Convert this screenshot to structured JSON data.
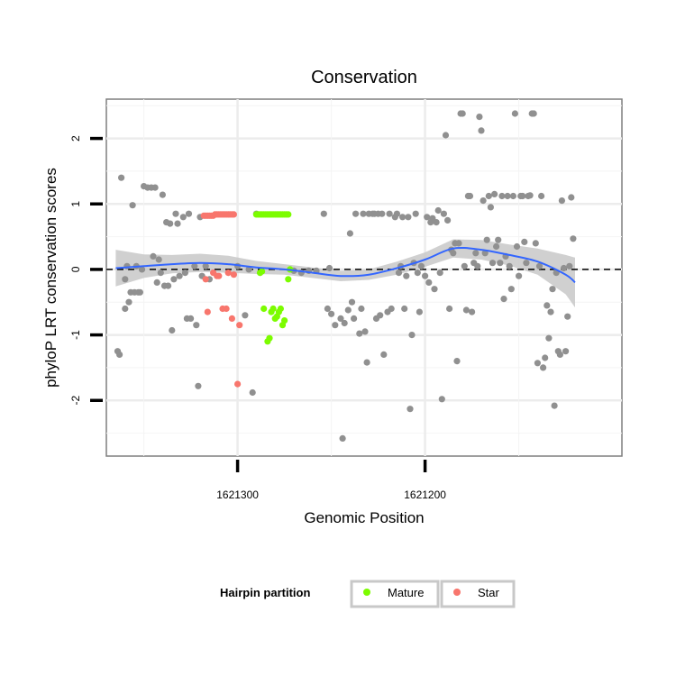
{
  "chart_data": {
    "type": "scatter",
    "title": "Conservation",
    "xlabel": "Genomic Position",
    "ylabel": "phyloP LRT conservation scores",
    "x_reversed": true,
    "xlim": [
      1621370,
      1621095
    ],
    "ylim": [
      -2.85,
      2.6
    ],
    "x_ticks": [
      1621300,
      1621200
    ],
    "x_tick_labels": [
      "1621300",
      "1621200"
    ],
    "y_ticks": [
      -2,
      -1,
      0,
      1,
      2
    ],
    "y_tick_labels": [
      "-2",
      "-1",
      "0",
      "1",
      "2"
    ],
    "grid": true,
    "reference_line": {
      "y": 0,
      "style": "dashed"
    },
    "legend": {
      "title": "Hairpin partition",
      "position": "bottom",
      "items": [
        {
          "label": "Mature",
          "color": "#7CFC00"
        },
        {
          "label": "Star",
          "color": "#F8766D"
        }
      ]
    },
    "colors": {
      "other": "#909090",
      "smooth": "#3366FF",
      "ribbon": "#c8c8c8"
    },
    "series": [
      {
        "group": "other",
        "points": [
          [
            1621364,
            -1.25
          ],
          [
            1621363,
            -1.3
          ],
          [
            1621362,
            1.4
          ],
          [
            1621360,
            -0.15
          ],
          [
            1621360,
            -0.6
          ],
          [
            1621359,
            0.05
          ],
          [
            1621358,
            -0.5
          ],
          [
            1621357,
            -0.35
          ],
          [
            1621356,
            0.98
          ],
          [
            1621355,
            -0.35
          ],
          [
            1621354,
            0.05
          ],
          [
            1621353,
            -0.35
          ],
          [
            1621352,
            -0.35
          ],
          [
            1621351,
            0
          ],
          [
            1621350,
            1.27
          ],
          [
            1621348,
            1.25
          ],
          [
            1621346,
            1.25
          ],
          [
            1621345,
            0.2
          ],
          [
            1621344,
            1.25
          ],
          [
            1621343,
            -0.2
          ],
          [
            1621342,
            0.15
          ],
          [
            1621341,
            -0.05
          ],
          [
            1621340,
            1.14
          ],
          [
            1621339,
            -0.25
          ],
          [
            1621338,
            0.72
          ],
          [
            1621337,
            -0.25
          ],
          [
            1621336,
            0.7
          ],
          [
            1621335,
            -0.93
          ],
          [
            1621334,
            -0.15
          ],
          [
            1621333,
            0.85
          ],
          [
            1621332,
            0.7
          ],
          [
            1621331,
            -0.1
          ],
          [
            1621329,
            0.8
          ],
          [
            1621328,
            -0.05
          ],
          [
            1621327,
            -0.75
          ],
          [
            1621326,
            0.85
          ],
          [
            1621325,
            -0.75
          ],
          [
            1621323,
            0.05
          ],
          [
            1621322,
            -0.85
          ],
          [
            1621321,
            -1.78
          ],
          [
            1621320,
            0.8
          ],
          [
            1621319,
            -0.1
          ],
          [
            1621317,
            0.05
          ],
          [
            1621315,
            -0.15
          ],
          [
            1621300,
            0.05
          ],
          [
            1621296,
            -0.7
          ],
          [
            1621294,
            0
          ],
          [
            1621292,
            -1.88
          ],
          [
            1621290,
            0.85
          ],
          [
            1621288,
            -0.05
          ],
          [
            1621270,
            -0.02
          ],
          [
            1621266,
            -0.05
          ],
          [
            1621262,
            -0.02
          ],
          [
            1621258,
            -0.02
          ],
          [
            1621254,
            0.85
          ],
          [
            1621252,
            -0.6
          ],
          [
            1621251,
            0.02
          ],
          [
            1621250,
            -0.68
          ],
          [
            1621248,
            -0.85
          ],
          [
            1621245,
            -0.75
          ],
          [
            1621244,
            -2.58
          ],
          [
            1621243,
            -0.82
          ],
          [
            1621241,
            -0.62
          ],
          [
            1621240,
            0.55
          ],
          [
            1621239,
            -0.5
          ],
          [
            1621238,
            -0.75
          ],
          [
            1621237,
            0.85
          ],
          [
            1621235,
            -0.98
          ],
          [
            1621234,
            -0.6
          ],
          [
            1621233,
            0.85
          ],
          [
            1621232,
            -0.95
          ],
          [
            1621231,
            -1.42
          ],
          [
            1621230,
            0.85
          ],
          [
            1621228,
            0.85
          ],
          [
            1621227,
            0.85
          ],
          [
            1621226,
            -0.75
          ],
          [
            1621225,
            0.85
          ],
          [
            1621224,
            -0.7
          ],
          [
            1621223,
            0.85
          ],
          [
            1621222,
            -1.3
          ],
          [
            1621220,
            -0.65
          ],
          [
            1621219,
            0.85
          ],
          [
            1621218,
            -0.6
          ],
          [
            1621216,
            0.8
          ],
          [
            1621215,
            0.85
          ],
          [
            1621214,
            -0.05
          ],
          [
            1621213,
            0.05
          ],
          [
            1621212,
            0.8
          ],
          [
            1621211,
            -0.6
          ],
          [
            1621210,
            -0.1
          ],
          [
            1621209,
            0.8
          ],
          [
            1621208,
            -2.13
          ],
          [
            1621207,
            -1
          ],
          [
            1621206,
            0.1
          ],
          [
            1621205,
            0.85
          ],
          [
            1621204,
            -0.05
          ],
          [
            1621203,
            -0.65
          ],
          [
            1621202,
            0.05
          ],
          [
            1621200,
            -0.1
          ],
          [
            1621199,
            0.8
          ],
          [
            1621198,
            -0.2
          ],
          [
            1621197,
            0.72
          ],
          [
            1621196,
            0.78
          ],
          [
            1621195,
            -0.3
          ],
          [
            1621194,
            0.72
          ],
          [
            1621193,
            0.9
          ],
          [
            1621192,
            -0.05
          ],
          [
            1621191,
            -1.98
          ],
          [
            1621190,
            0.85
          ],
          [
            1621189,
            2.05
          ],
          [
            1621188,
            0.75
          ],
          [
            1621187,
            -0.6
          ],
          [
            1621186,
            0.3
          ],
          [
            1621185,
            0.25
          ],
          [
            1621184,
            0.4
          ],
          [
            1621183,
            -1.4
          ],
          [
            1621182,
            0.4
          ],
          [
            1621181,
            2.38
          ],
          [
            1621180,
            2.38
          ],
          [
            1621179,
            0.05
          ],
          [
            1621178,
            -0.62
          ],
          [
            1621177,
            1.12
          ],
          [
            1621176,
            1.12
          ],
          [
            1621175,
            -0.65
          ],
          [
            1621174,
            0.1
          ],
          [
            1621173,
            0.25
          ],
          [
            1621172,
            0.05
          ],
          [
            1621171,
            2.33
          ],
          [
            1621170,
            2.12
          ],
          [
            1621169,
            1.05
          ],
          [
            1621168,
            0.25
          ],
          [
            1621167,
            0.45
          ],
          [
            1621166,
            1.12
          ],
          [
            1621165,
            0.95
          ],
          [
            1621164,
            0.1
          ],
          [
            1621163,
            1.15
          ],
          [
            1621162,
            0.35
          ],
          [
            1621161,
            0.45
          ],
          [
            1621160,
            0.1
          ],
          [
            1621159,
            1.12
          ],
          [
            1621158,
            -0.45
          ],
          [
            1621157,
            0.2
          ],
          [
            1621156,
            1.12
          ],
          [
            1621155,
            0.05
          ],
          [
            1621154,
            -0.3
          ],
          [
            1621153,
            1.12
          ],
          [
            1621152,
            2.38
          ],
          [
            1621151,
            0.35
          ],
          [
            1621150,
            -0.1
          ],
          [
            1621149,
            1.12
          ],
          [
            1621148,
            1.12
          ],
          [
            1621147,
            0.42
          ],
          [
            1621146,
            0.1
          ],
          [
            1621145,
            1.12
          ],
          [
            1621144,
            1.13
          ],
          [
            1621143,
            2.38
          ],
          [
            1621142,
            2.38
          ],
          [
            1621141,
            0.4
          ],
          [
            1621140,
            -1.43
          ],
          [
            1621139,
            0.05
          ],
          [
            1621138,
            1.12
          ],
          [
            1621137,
            -1.5
          ],
          [
            1621136,
            -1.35
          ],
          [
            1621135,
            -0.55
          ],
          [
            1621134,
            -1.05
          ],
          [
            1621133,
            -0.65
          ],
          [
            1621132,
            -0.3
          ],
          [
            1621131,
            -2.08
          ],
          [
            1621130,
            -0.05
          ],
          [
            1621129,
            -1.25
          ],
          [
            1621128,
            -1.3
          ],
          [
            1621127,
            1.05
          ],
          [
            1621126,
            0.02
          ],
          [
            1621125,
            -1.25
          ],
          [
            1621124,
            -0.72
          ],
          [
            1621123,
            0.05
          ],
          [
            1621122,
            1.1
          ],
          [
            1621121,
            0.47
          ]
        ]
      },
      {
        "group": "Star",
        "points": [
          [
            1621318,
            0.82
          ],
          [
            1621317,
            0.82
          ],
          [
            1621316,
            0.82
          ],
          [
            1621315,
            0.82
          ],
          [
            1621314,
            0.82
          ],
          [
            1621313,
            0.82
          ],
          [
            1621312,
            0.84
          ],
          [
            1621311,
            0.84
          ],
          [
            1621310,
            0.84
          ],
          [
            1621309,
            0.84
          ],
          [
            1621308,
            0.84
          ],
          [
            1621307,
            0.84
          ],
          [
            1621306,
            0.84
          ],
          [
            1621305,
            0.84
          ],
          [
            1621304,
            0.84
          ],
          [
            1621303,
            0.84
          ],
          [
            1621302,
            0.84
          ],
          [
            1621317,
            -0.15
          ],
          [
            1621316,
            -0.65
          ],
          [
            1621313,
            -0.05
          ],
          [
            1621311,
            -0.1
          ],
          [
            1621310,
            -0.1
          ],
          [
            1621305,
            -0.05
          ],
          [
            1621308,
            -0.6
          ],
          [
            1621306,
            -0.6
          ],
          [
            1621303,
            -0.75
          ],
          [
            1621300,
            -1.75
          ],
          [
            1621299,
            -0.85
          ],
          [
            1621302,
            -0.08
          ]
        ]
      },
      {
        "group": "Mature",
        "points": [
          [
            1621290,
            0.84
          ],
          [
            1621289,
            0.84
          ],
          [
            1621288,
            0.84
          ],
          [
            1621287,
            0.84
          ],
          [
            1621286,
            0.84
          ],
          [
            1621285,
            0.84
          ],
          [
            1621284,
            0.84
          ],
          [
            1621283,
            0.84
          ],
          [
            1621282,
            0.84
          ],
          [
            1621281,
            0.84
          ],
          [
            1621280,
            0.84
          ],
          [
            1621279,
            0.84
          ],
          [
            1621278,
            0.84
          ],
          [
            1621277,
            0.84
          ],
          [
            1621276,
            0.84
          ],
          [
            1621275,
            0.84
          ],
          [
            1621274,
            0.84
          ],
          [
            1621273,
            0.84
          ],
          [
            1621288,
            -0.05
          ],
          [
            1621287,
            -0.03
          ],
          [
            1621286,
            -0.6
          ],
          [
            1621284,
            -1.1
          ],
          [
            1621283,
            -1.05
          ],
          [
            1621282,
            -0.65
          ],
          [
            1621281,
            -0.6
          ],
          [
            1621280,
            -0.75
          ],
          [
            1621279,
            -0.72
          ],
          [
            1621278,
            -0.65
          ],
          [
            1621277,
            -0.6
          ],
          [
            1621276,
            -0.85
          ],
          [
            1621275,
            -0.78
          ],
          [
            1621273,
            -0.15
          ],
          [
            1621272,
            0
          ]
        ]
      }
    ],
    "smooth": {
      "x": [
        1621365,
        1621350,
        1621335,
        1621320,
        1621305,
        1621290,
        1621275,
        1621260,
        1621245,
        1621230,
        1621215,
        1621200,
        1621185,
        1621170,
        1621155,
        1621140,
        1621125,
        1621120
      ],
      "y": [
        0.02,
        0.05,
        0.08,
        0.1,
        0.08,
        0.03,
        0.0,
        -0.05,
        -0.1,
        -0.08,
        0.02,
        0.15,
        0.32,
        0.3,
        0.22,
        0.12,
        -0.08,
        -0.2
      ],
      "ribbon": [
        0.28,
        0.18,
        0.14,
        0.14,
        0.13,
        0.1,
        0.08,
        0.08,
        0.08,
        0.08,
        0.1,
        0.11,
        0.14,
        0.15,
        0.16,
        0.2,
        0.3,
        0.38
      ]
    }
  }
}
